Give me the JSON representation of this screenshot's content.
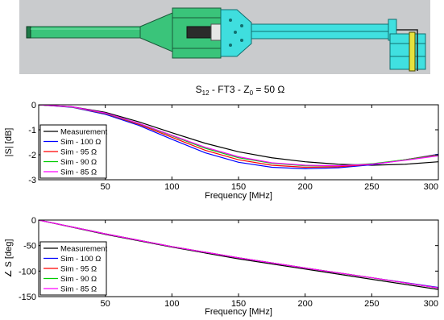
{
  "model_image": {
    "colors": {
      "background": "#c8cacc",
      "inner_conductor": "#38c878",
      "body": "#40e0e0",
      "ferrite": "#e0e040"
    }
  },
  "chart_data": [
    {
      "type": "line",
      "title": {
        "prefix": "S",
        "sub1": "12",
        "mid": " - FT3 - Z",
        "sub2": "0",
        "suffix": " = 50 Ω"
      },
      "xlabel": "Frequency [MHz]",
      "ylabel": "|S| [dB]",
      "xlim": [
        0,
        300
      ],
      "ylim": [
        -3,
        0
      ],
      "xticks": [
        50,
        100,
        150,
        200,
        250,
        300
      ],
      "yticks": [
        0,
        -1,
        -2,
        -3
      ],
      "ytick_labels": [
        "0",
        "-1",
        "-2",
        "-3"
      ],
      "xtick_labels": [
        "50",
        "100",
        "150",
        "200",
        "250",
        "300"
      ],
      "grid": false,
      "legend": "bottom-left",
      "x": [
        0,
        25,
        50,
        75,
        100,
        125,
        150,
        175,
        200,
        225,
        250,
        275,
        300
      ],
      "series": [
        {
          "name": "Measurement",
          "color": "#000000",
          "values": [
            0,
            -0.08,
            -0.3,
            -0.68,
            -1.12,
            -1.54,
            -1.88,
            -2.12,
            -2.28,
            -2.38,
            -2.42,
            -2.38,
            -2.28
          ]
        },
        {
          "name": "Sim - 100 Ω",
          "color": "#0000ff",
          "values": [
            0,
            -0.1,
            -0.38,
            -0.82,
            -1.38,
            -1.92,
            -2.3,
            -2.5,
            -2.56,
            -2.52,
            -2.4,
            -2.2,
            -1.98
          ]
        },
        {
          "name": "Sim - 95 Ω",
          "color": "#ff0000",
          "values": [
            0,
            -0.09,
            -0.35,
            -0.78,
            -1.3,
            -1.82,
            -2.2,
            -2.42,
            -2.5,
            -2.48,
            -2.38,
            -2.2,
            -2.0
          ]
        },
        {
          "name": "Sim - 90 Ω",
          "color": "#00cc00",
          "values": [
            0,
            -0.09,
            -0.34,
            -0.75,
            -1.24,
            -1.74,
            -2.12,
            -2.34,
            -2.44,
            -2.44,
            -2.36,
            -2.2,
            -2.02
          ]
        },
        {
          "name": "Sim - 85 Ω",
          "color": "#ff00ff",
          "values": [
            0,
            -0.08,
            -0.33,
            -0.74,
            -1.22,
            -1.7,
            -2.08,
            -2.32,
            -2.42,
            -2.44,
            -2.38,
            -2.22,
            -2.04
          ]
        }
      ]
    },
    {
      "type": "line",
      "xlabel": "Frequency [MHz]",
      "ylabel": "∠ S [deg]",
      "xlim": [
        0,
        300
      ],
      "ylim": [
        -150,
        0
      ],
      "xticks": [
        50,
        100,
        150,
        200,
        250,
        300
      ],
      "yticks": [
        0,
        -50,
        -100,
        -150
      ],
      "ytick_labels": [
        "0",
        "-50",
        "-100",
        "-150"
      ],
      "xtick_labels": [
        "50",
        "100",
        "150",
        "200",
        "250",
        "300"
      ],
      "grid": false,
      "legend": "bottom-left",
      "x": [
        0,
        50,
        100,
        150,
        200,
        250,
        300
      ],
      "series": [
        {
          "name": "Measurement",
          "color": "#000000",
          "values": [
            0,
            -28,
            -53,
            -76,
            -96,
            -116,
            -136
          ]
        },
        {
          "name": "Sim - 100 Ω",
          "color": "#0000ff",
          "values": [
            0,
            -27,
            -52,
            -74,
            -94,
            -113,
            -132
          ]
        },
        {
          "name": "Sim - 95 Ω",
          "color": "#ff0000",
          "values": [
            0,
            -27,
            -52,
            -74,
            -94,
            -113,
            -133
          ]
        },
        {
          "name": "Sim - 90 Ω",
          "color": "#00cc00",
          "values": [
            0,
            -27,
            -52,
            -74,
            -94,
            -113,
            -133
          ]
        },
        {
          "name": "Sim - 85 Ω",
          "color": "#ff00ff",
          "values": [
            0,
            -27,
            -52,
            -74,
            -94,
            -113,
            -133
          ]
        }
      ]
    }
  ]
}
